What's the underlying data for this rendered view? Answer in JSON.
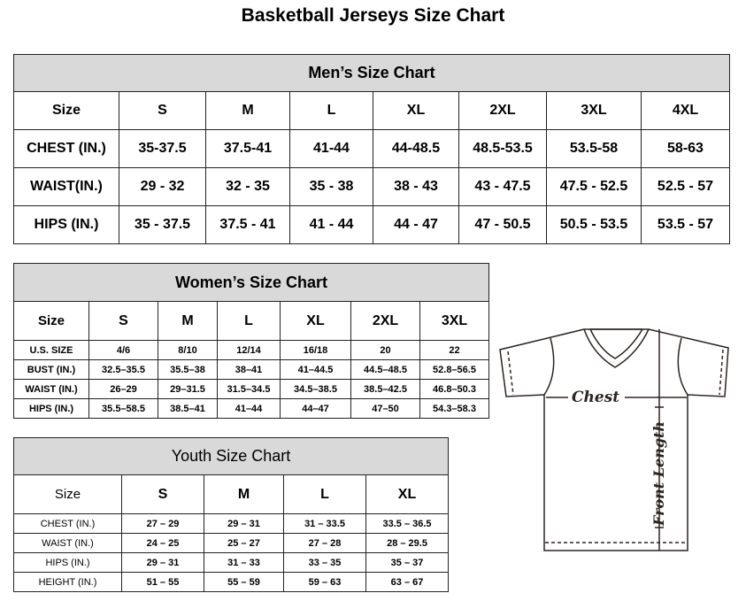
{
  "title": "Basketball Jerseys Size Chart",
  "men": {
    "caption": "Men’s Size Chart",
    "header": [
      "Size",
      "S",
      "M",
      "L",
      "XL",
      "2XL",
      "3XL",
      "4XL"
    ],
    "rows": [
      [
        "CHEST (IN.)",
        "35-37.5",
        "37.5-41",
        "41-44",
        "44-48.5",
        "48.5-53.5",
        "53.5-58",
        "58-63"
      ],
      [
        "WAIST(IN.)",
        "29 - 32",
        "32 - 35",
        "35 - 38",
        "38 - 43",
        "43 - 47.5",
        "47.5 - 52.5",
        "52.5 - 57"
      ],
      [
        "HIPS (IN.)",
        "35 - 37.5",
        "37.5 - 41",
        "41 - 44",
        "44 - 47",
        "47 - 50.5",
        "50.5 - 53.5",
        "53.5 - 57"
      ]
    ]
  },
  "women": {
    "caption": "Women’s Size Chart",
    "header": [
      "Size",
      "S",
      "M",
      "L",
      "XL",
      "2XL",
      "3XL"
    ],
    "rows": [
      [
        "U.S. SIZE",
        "4/6",
        "8/10",
        "12/14",
        "16/18",
        "20",
        "22"
      ],
      [
        "BUST (IN.)",
        "32.5–35.5",
        "35.5–38",
        "38–41",
        "41–44.5",
        "44.5–48.5",
        "52.8–56.5"
      ],
      [
        "WAIST (IN.)",
        "26–29",
        "29–31.5",
        "31.5–34.5",
        "34.5–38.5",
        "38.5–42.5",
        "46.8–50.3"
      ],
      [
        "HIPS (IN.)",
        "35.5–58.5",
        "38.5–41",
        "41–44",
        "44–47",
        "47–50",
        "54.3–58.3"
      ]
    ]
  },
  "youth": {
    "caption": "Youth Size Chart",
    "header": [
      "Size",
      "S",
      "M",
      "L",
      "XL"
    ],
    "rows": [
      [
        "CHEST (IN.)",
        "27 – 29",
        "29 – 31",
        "31 – 33.5",
        "33.5 – 36.5"
      ],
      [
        "WAIST (IN.)",
        "24 – 25",
        "25 – 27",
        "27 – 28",
        "28 – 29.5"
      ],
      [
        "HIPS (IN.)",
        "29 – 31",
        "31 – 33",
        "33 – 35",
        "35 – 37"
      ],
      [
        "HEIGHT (IN.)",
        "51 – 55",
        "55 – 59",
        "59 – 63",
        "63 – 67"
      ]
    ]
  },
  "diagram": {
    "chest_label": "Chest",
    "length_label": "Front Length"
  }
}
